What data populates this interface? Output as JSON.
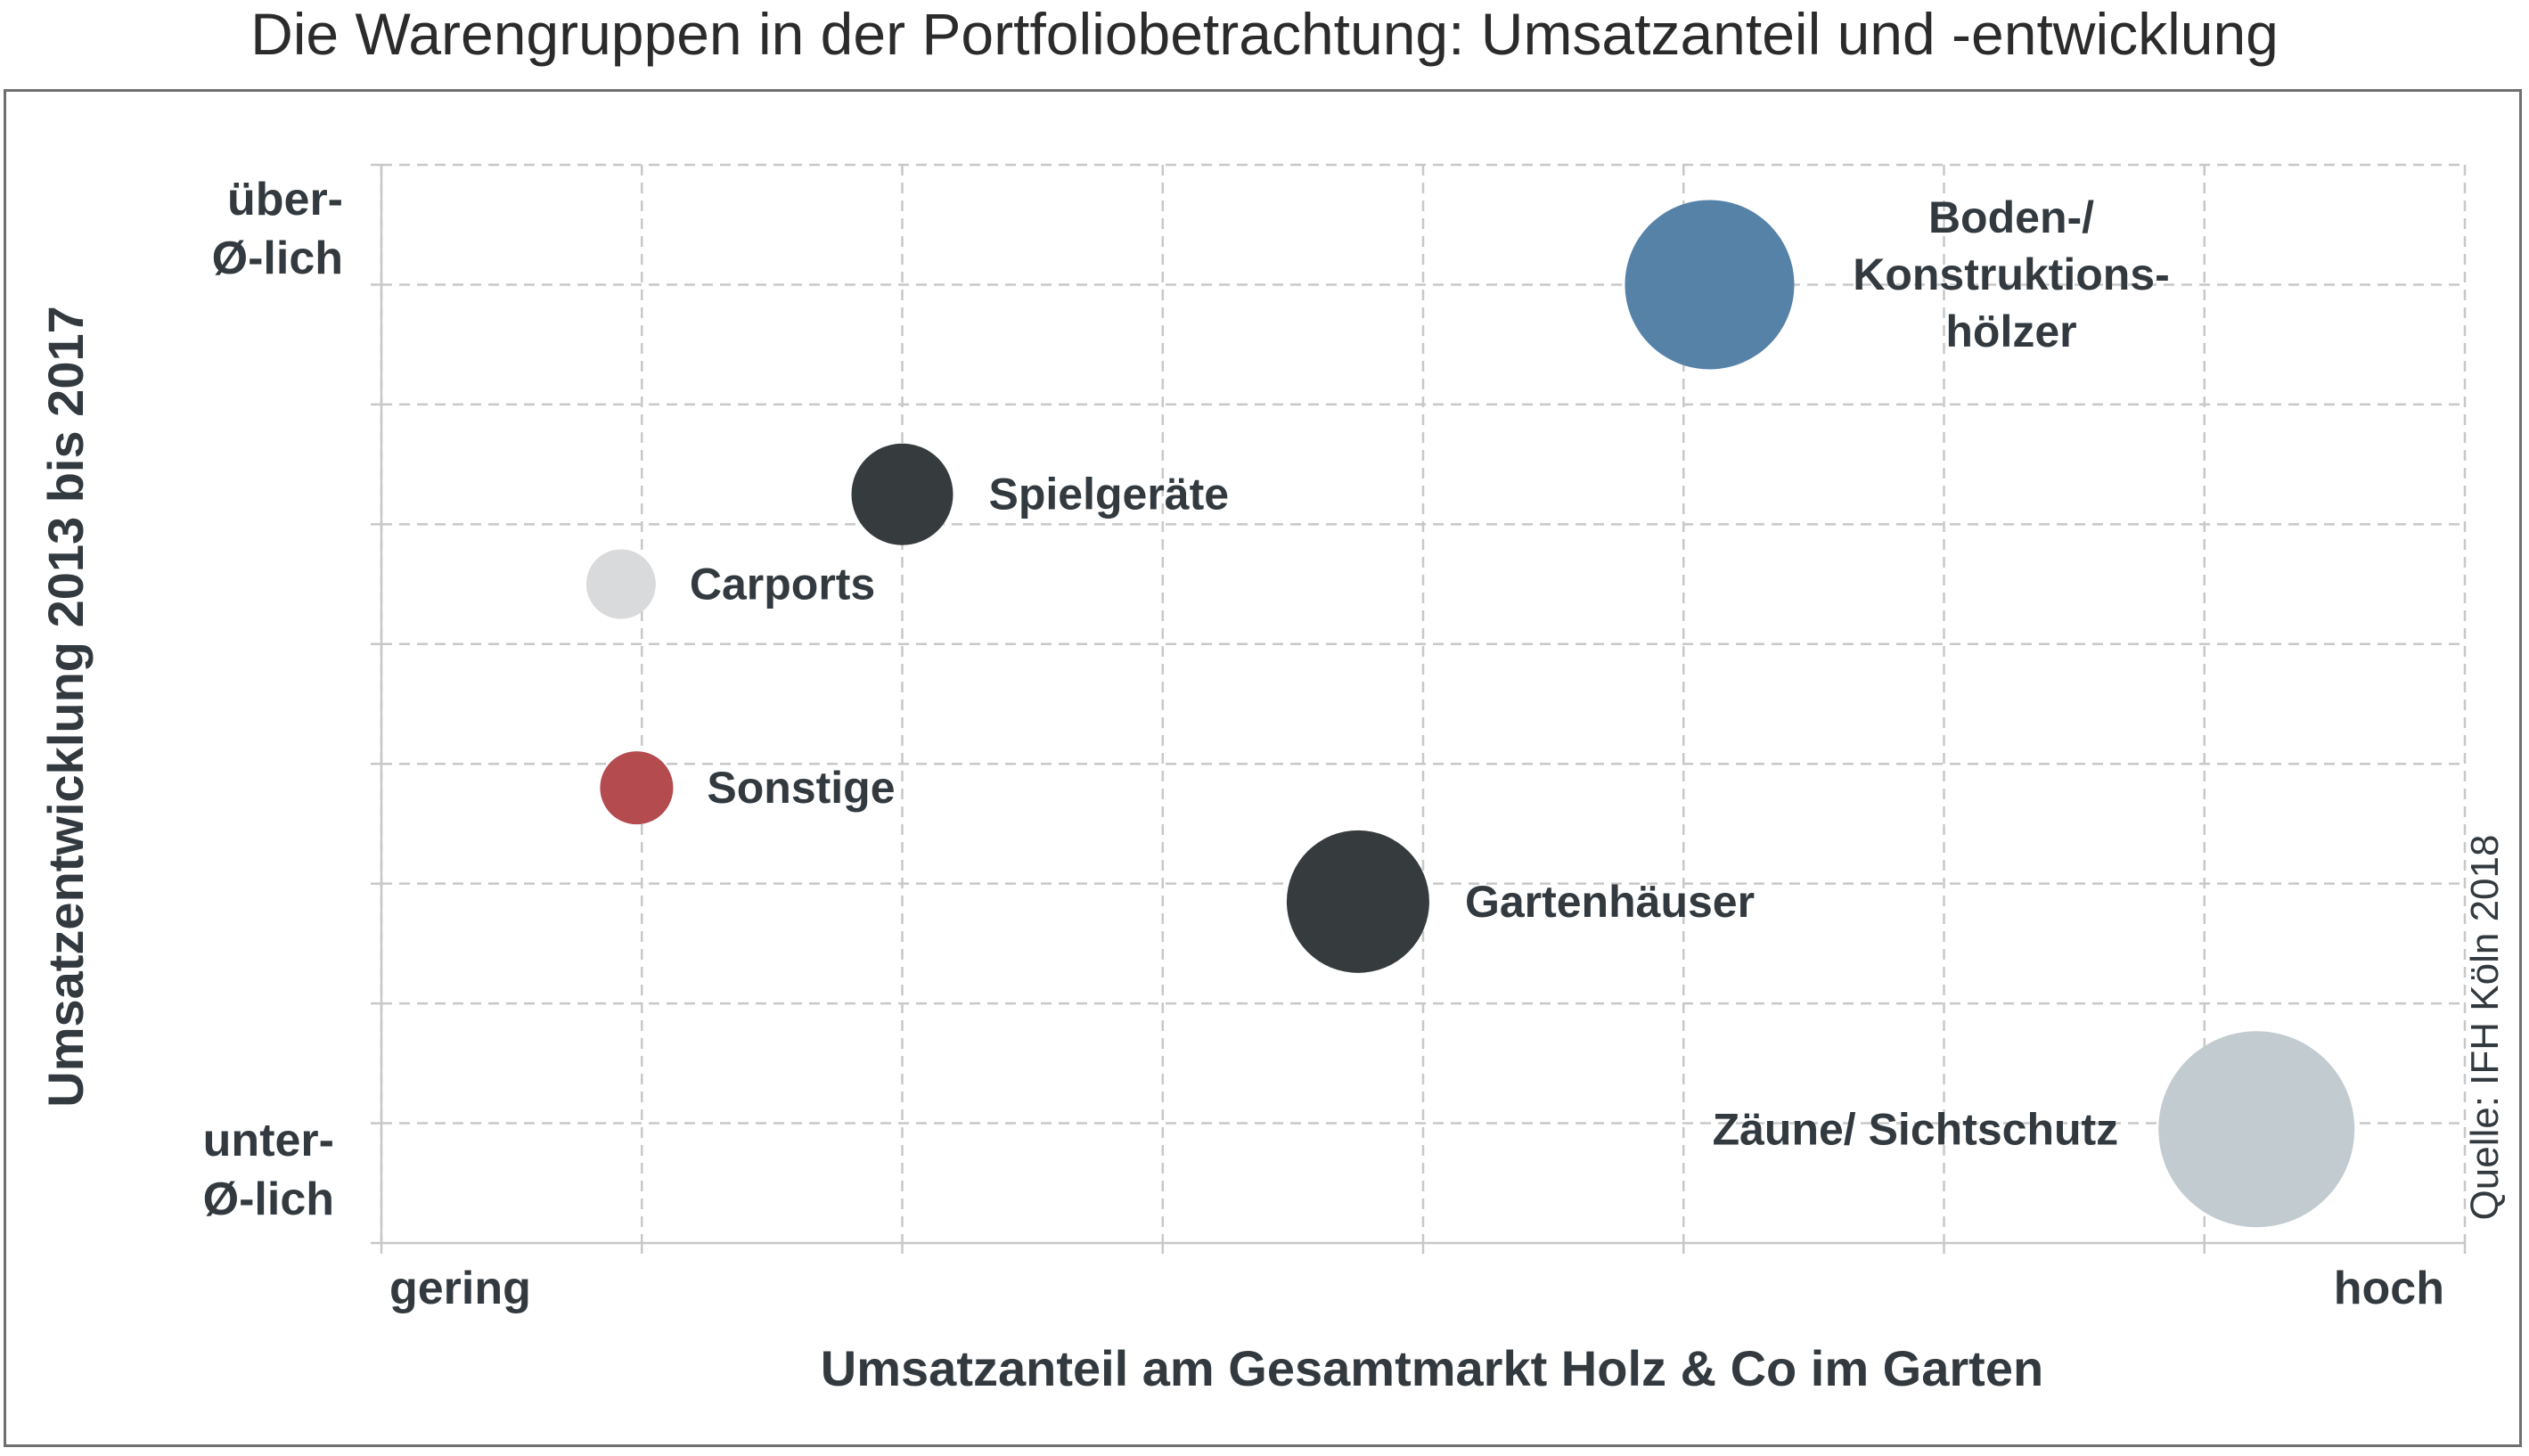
{
  "title": "Die Warengruppen in der Portfoliobetrachtung: Umsatzanteil und -entwicklung",
  "source": "Quelle: IFH Köln 2018",
  "chart_data": {
    "type": "scatter",
    "title": "Die Warengruppen in der Portfoliobetrachtung: Umsatzanteil und -entwicklung",
    "xlabel": "Umsatzanteil am Gesamtmarkt Holz & Co im Garten",
    "ylabel": "Umsatzentwicklung 2013 bis 2017",
    "x_tick_labels": {
      "low": "gering",
      "high": "hoch"
    },
    "y_tick_labels": {
      "high": [
        "über-",
        "Ø-lich"
      ],
      "low": [
        "unter-",
        "Ø-lich"
      ]
    },
    "xlim": [
      0,
      8
    ],
    "ylim": [
      0,
      9
    ],
    "grid": true,
    "points": [
      {
        "label": [
          "Boden-/",
          "Konstruktions-",
          "hölzer"
        ],
        "x": 5.1,
        "y": 8.0,
        "size": 0.95,
        "color": "#5782a8"
      },
      {
        "label": [
          "Spielgeräte"
        ],
        "x": 2.0,
        "y": 6.25,
        "size": 0.57,
        "color": "#363b3e"
      },
      {
        "label": [
          "Carports"
        ],
        "x": 0.92,
        "y": 5.5,
        "size": 0.39,
        "color": "#d9dadc"
      },
      {
        "label": [
          "Sonstige"
        ],
        "x": 0.98,
        "y": 3.8,
        "size": 0.41,
        "color": "#b34b4f"
      },
      {
        "label": [
          "Gartenhäuser"
        ],
        "x": 3.75,
        "y": 2.85,
        "size": 0.8,
        "color": "#363b3e"
      },
      {
        "label": [
          "Zäune/ Sichtschutz"
        ],
        "x": 7.2,
        "y": 0.95,
        "size": 1.1,
        "color": "#c2cbd0"
      }
    ]
  }
}
